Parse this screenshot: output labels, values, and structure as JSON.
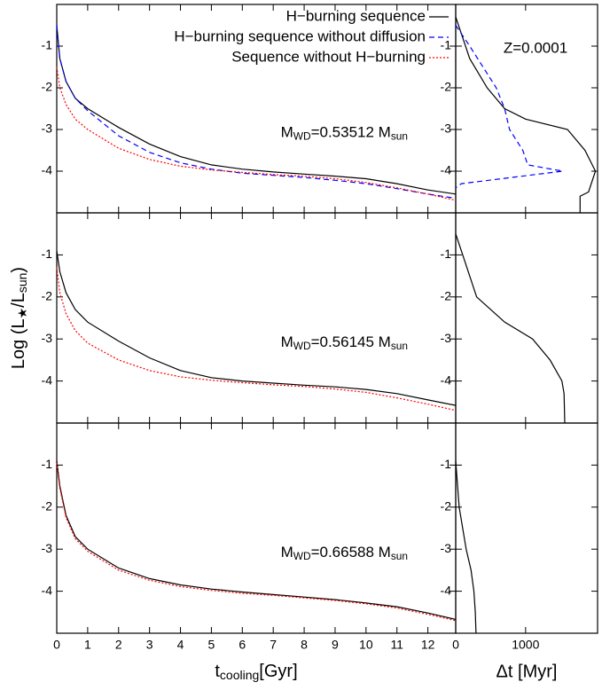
{
  "chart_data": [
    {
      "type": "line",
      "xlim": [
        0,
        12.9
      ],
      "ylim": [
        -5,
        0
      ],
      "xticks": [
        0,
        1,
        2,
        3,
        4,
        5,
        6,
        7,
        8,
        9,
        10,
        11,
        12
      ],
      "xtick_labels": false,
      "yticks": [
        -1,
        -2,
        -3,
        -4
      ],
      "legend": "upper right",
      "annotation_parts": [
        "M",
        "WD",
        "=0.53512 M",
        "sun"
      ],
      "x": [
        0,
        0.1,
        0.3,
        0.6,
        1,
        2,
        3,
        4,
        5,
        6,
        7,
        8,
        9,
        10,
        11,
        12,
        12.9
      ],
      "series": [
        {
          "name": "H−burning sequence",
          "color": "#000000",
          "dash": "solid",
          "values": [
            -0.5,
            -1.3,
            -1.85,
            -2.25,
            -2.5,
            -2.95,
            -3.35,
            -3.65,
            -3.85,
            -3.95,
            -4.02,
            -4.07,
            -4.12,
            -4.18,
            -4.3,
            -4.45,
            -4.55
          ]
        },
        {
          "name": "H−burning sequence without diffusion",
          "color": "#0000ff",
          "dash": "dashed",
          "values": [
            -0.5,
            -1.3,
            -1.85,
            -2.25,
            -2.55,
            -3.15,
            -3.55,
            -3.8,
            -3.95,
            -4.05,
            -4.1,
            -4.15,
            -4.22,
            -4.3,
            -4.42,
            -4.55,
            -4.65
          ]
        },
        {
          "name": "Sequence without H−burning",
          "color": "#ff0000",
          "dash": "dotted",
          "values": [
            -1.5,
            -2.0,
            -2.4,
            -2.75,
            -3.0,
            -3.45,
            -3.72,
            -3.88,
            -3.97,
            -4.03,
            -4.08,
            -4.12,
            -4.18,
            -4.27,
            -4.4,
            -4.55,
            -4.7
          ]
        }
      ]
    },
    {
      "type": "line",
      "xlim": [
        0,
        2030
      ],
      "ylim": [
        -5,
        0
      ],
      "xticks": [
        0,
        1000
      ],
      "xtick_labels": false,
      "yticks": [
        -1,
        -2,
        -3,
        -4
      ],
      "annotation": "Z=0.0001",
      "series": [
        {
          "color": "#000000",
          "dash": "solid",
          "x": [
            0,
            200,
            450,
            700,
            1000,
            1600,
            1850,
            2000,
            1900,
            1780,
            1780
          ],
          "values": [
            -0.3,
            -1.3,
            -2.0,
            -2.5,
            -2.75,
            -3.0,
            -3.5,
            -4.0,
            -4.5,
            -4.6,
            -5.0
          ]
        },
        {
          "color": "#0000ff",
          "dash": "dashed",
          "x": [
            0,
            200,
            580,
            700,
            770,
            960,
            1030,
            1530,
            80,
            0
          ],
          "values": [
            -0.5,
            -1.0,
            -2.0,
            -2.5,
            -3.0,
            -3.5,
            -3.85,
            -4.0,
            -4.3,
            -4.4
          ]
        }
      ]
    },
    {
      "type": "line",
      "xlim": [
        0,
        12.9
      ],
      "ylim": [
        -5,
        0
      ],
      "xticks": [
        0,
        1,
        2,
        3,
        4,
        5,
        6,
        7,
        8,
        9,
        10,
        11,
        12
      ],
      "xtick_labels": false,
      "yticks": [
        -1,
        -2,
        -3,
        -4
      ],
      "ylabel_parts": [
        "Log (L",
        "★",
        "/L",
        "sun",
        ")"
      ],
      "annotation_parts": [
        "M",
        "WD",
        "=0.56145 M",
        "sun"
      ],
      "x": [
        0,
        0.1,
        0.3,
        0.6,
        1,
        2,
        3,
        4,
        5,
        6,
        7,
        8,
        9,
        10,
        11,
        12,
        12.9
      ],
      "series": [
        {
          "color": "#000000",
          "dash": "solid",
          "values": [
            -0.9,
            -1.4,
            -1.9,
            -2.3,
            -2.6,
            -3.05,
            -3.45,
            -3.75,
            -3.92,
            -4.0,
            -4.05,
            -4.1,
            -4.14,
            -4.2,
            -4.3,
            -4.45,
            -4.58
          ]
        },
        {
          "color": "#ff0000",
          "dash": "dotted",
          "values": [
            -1.3,
            -1.9,
            -2.4,
            -2.8,
            -3.1,
            -3.5,
            -3.75,
            -3.9,
            -3.98,
            -4.04,
            -4.09,
            -4.13,
            -4.19,
            -4.27,
            -4.4,
            -4.55,
            -4.7
          ]
        }
      ]
    },
    {
      "type": "line",
      "xlim": [
        0,
        2030
      ],
      "ylim": [
        -5,
        0
      ],
      "xticks": [
        0,
        1000
      ],
      "xtick_labels": false,
      "yticks": [
        -1,
        -2,
        -3,
        -4
      ],
      "series": [
        {
          "color": "#000000",
          "dash": "solid",
          "x": [
            0,
            100,
            300,
            700,
            1100,
            1350,
            1520,
            1550,
            1560
          ],
          "values": [
            -0.5,
            -1.0,
            -2.0,
            -2.6,
            -3.0,
            -3.5,
            -4.0,
            -4.3,
            -5.0
          ]
        }
      ]
    },
    {
      "type": "line",
      "xlim": [
        0,
        12.9
      ],
      "ylim": [
        -5,
        0
      ],
      "xticks": [
        0,
        1,
        2,
        3,
        4,
        5,
        6,
        7,
        8,
        9,
        10,
        11,
        12
      ],
      "xtick_labels": true,
      "yticks": [
        -1,
        -2,
        -3,
        -4
      ],
      "xlabel_parts": [
        "t",
        "cooling",
        "[Gyr]"
      ],
      "annotation_parts": [
        "M",
        "WD",
        "=0.66588 M",
        "sun"
      ],
      "x": [
        0,
        0.1,
        0.3,
        0.6,
        1,
        2,
        3,
        4,
        5,
        6,
        7,
        8,
        9,
        10,
        11,
        12,
        12.9
      ],
      "series": [
        {
          "color": "#000000",
          "dash": "solid",
          "values": [
            -0.9,
            -1.5,
            -2.2,
            -2.7,
            -3.0,
            -3.45,
            -3.7,
            -3.85,
            -3.95,
            -4.02,
            -4.08,
            -4.14,
            -4.2,
            -4.28,
            -4.37,
            -4.52,
            -4.67
          ]
        },
        {
          "color": "#ff0000",
          "dash": "dotted",
          "values": [
            -0.95,
            -1.55,
            -2.25,
            -2.75,
            -3.05,
            -3.5,
            -3.74,
            -3.89,
            -3.98,
            -4.05,
            -4.1,
            -4.16,
            -4.22,
            -4.3,
            -4.4,
            -4.55,
            -4.7
          ]
        }
      ]
    },
    {
      "type": "line",
      "xlim": [
        0,
        2030
      ],
      "ylim": [
        -5,
        0
      ],
      "xticks": [
        0,
        1000
      ],
      "xtick_labels": true,
      "yticks": [
        -1,
        -2,
        -3,
        -4
      ],
      "xlabel": "Δt [Myr]",
      "series": [
        {
          "color": "#000000",
          "dash": "solid",
          "x": [
            0,
            50,
            150,
            220,
            260,
            280,
            290
          ],
          "values": [
            -0.9,
            -2.0,
            -3.0,
            -3.5,
            -4.0,
            -4.5,
            -5.0
          ]
        }
      ]
    }
  ]
}
